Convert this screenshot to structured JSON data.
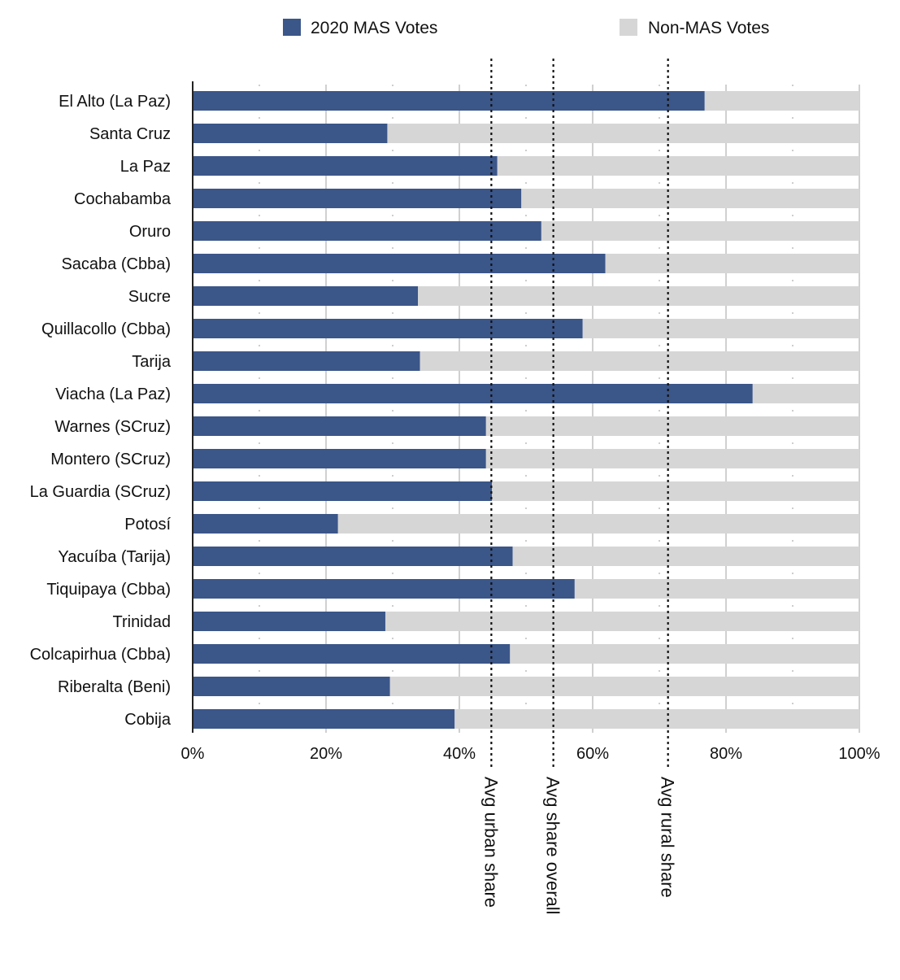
{
  "chart_data": {
    "type": "bar",
    "orientation": "horizontal",
    "stacked": "percent",
    "categories": [
      "El Alto (La Paz)",
      "Santa Cruz",
      "La Paz",
      "Cochabamba",
      "Oruro",
      "Sacaba (Cbba)",
      "Sucre",
      "Quillacollo (Cbba)",
      "Tarija",
      "Viacha (La Paz)",
      "Warnes (SCruz)",
      "Montero (SCruz)",
      "La Guardia (SCruz)",
      "Potosí",
      "Yacuíba (Tarija)",
      "Tiquipaya (Cbba)",
      "Trinidad",
      "Colcapirhua (Cbba)",
      "Riberalta (Beni)",
      "Cobija"
    ],
    "series": [
      {
        "name": "2020 MAS Votes",
        "color": "#3b5689",
        "values": [
          76.8,
          29.2,
          45.7,
          49.3,
          52.3,
          61.9,
          33.8,
          58.5,
          34.1,
          84.0,
          44.0,
          44.0,
          44.9,
          21.8,
          48.0,
          57.3,
          28.9,
          47.6,
          29.6,
          39.3
        ]
      },
      {
        "name": "Non-MAS Votes",
        "color": "#d6d6d6",
        "values": [
          23.2,
          70.8,
          54.3,
          50.7,
          47.7,
          38.1,
          66.2,
          41.5,
          65.9,
          16.0,
          56.0,
          56.0,
          55.1,
          78.2,
          52.0,
          42.7,
          71.1,
          52.4,
          70.4,
          60.7
        ]
      }
    ],
    "x_ticks": [
      "0%",
      "20%",
      "40%",
      "60%",
      "80%",
      "100%"
    ],
    "x_tick_values": [
      0,
      20,
      40,
      60,
      80,
      100
    ],
    "xlim": [
      0,
      100
    ],
    "grid": true,
    "legend_position": "top",
    "reference_lines": [
      {
        "label": "Avg urban share",
        "value": 44.8
      },
      {
        "label": "Avg share overall",
        "value": 54.1
      },
      {
        "label": "Avg rural share",
        "value": 71.3
      }
    ]
  }
}
